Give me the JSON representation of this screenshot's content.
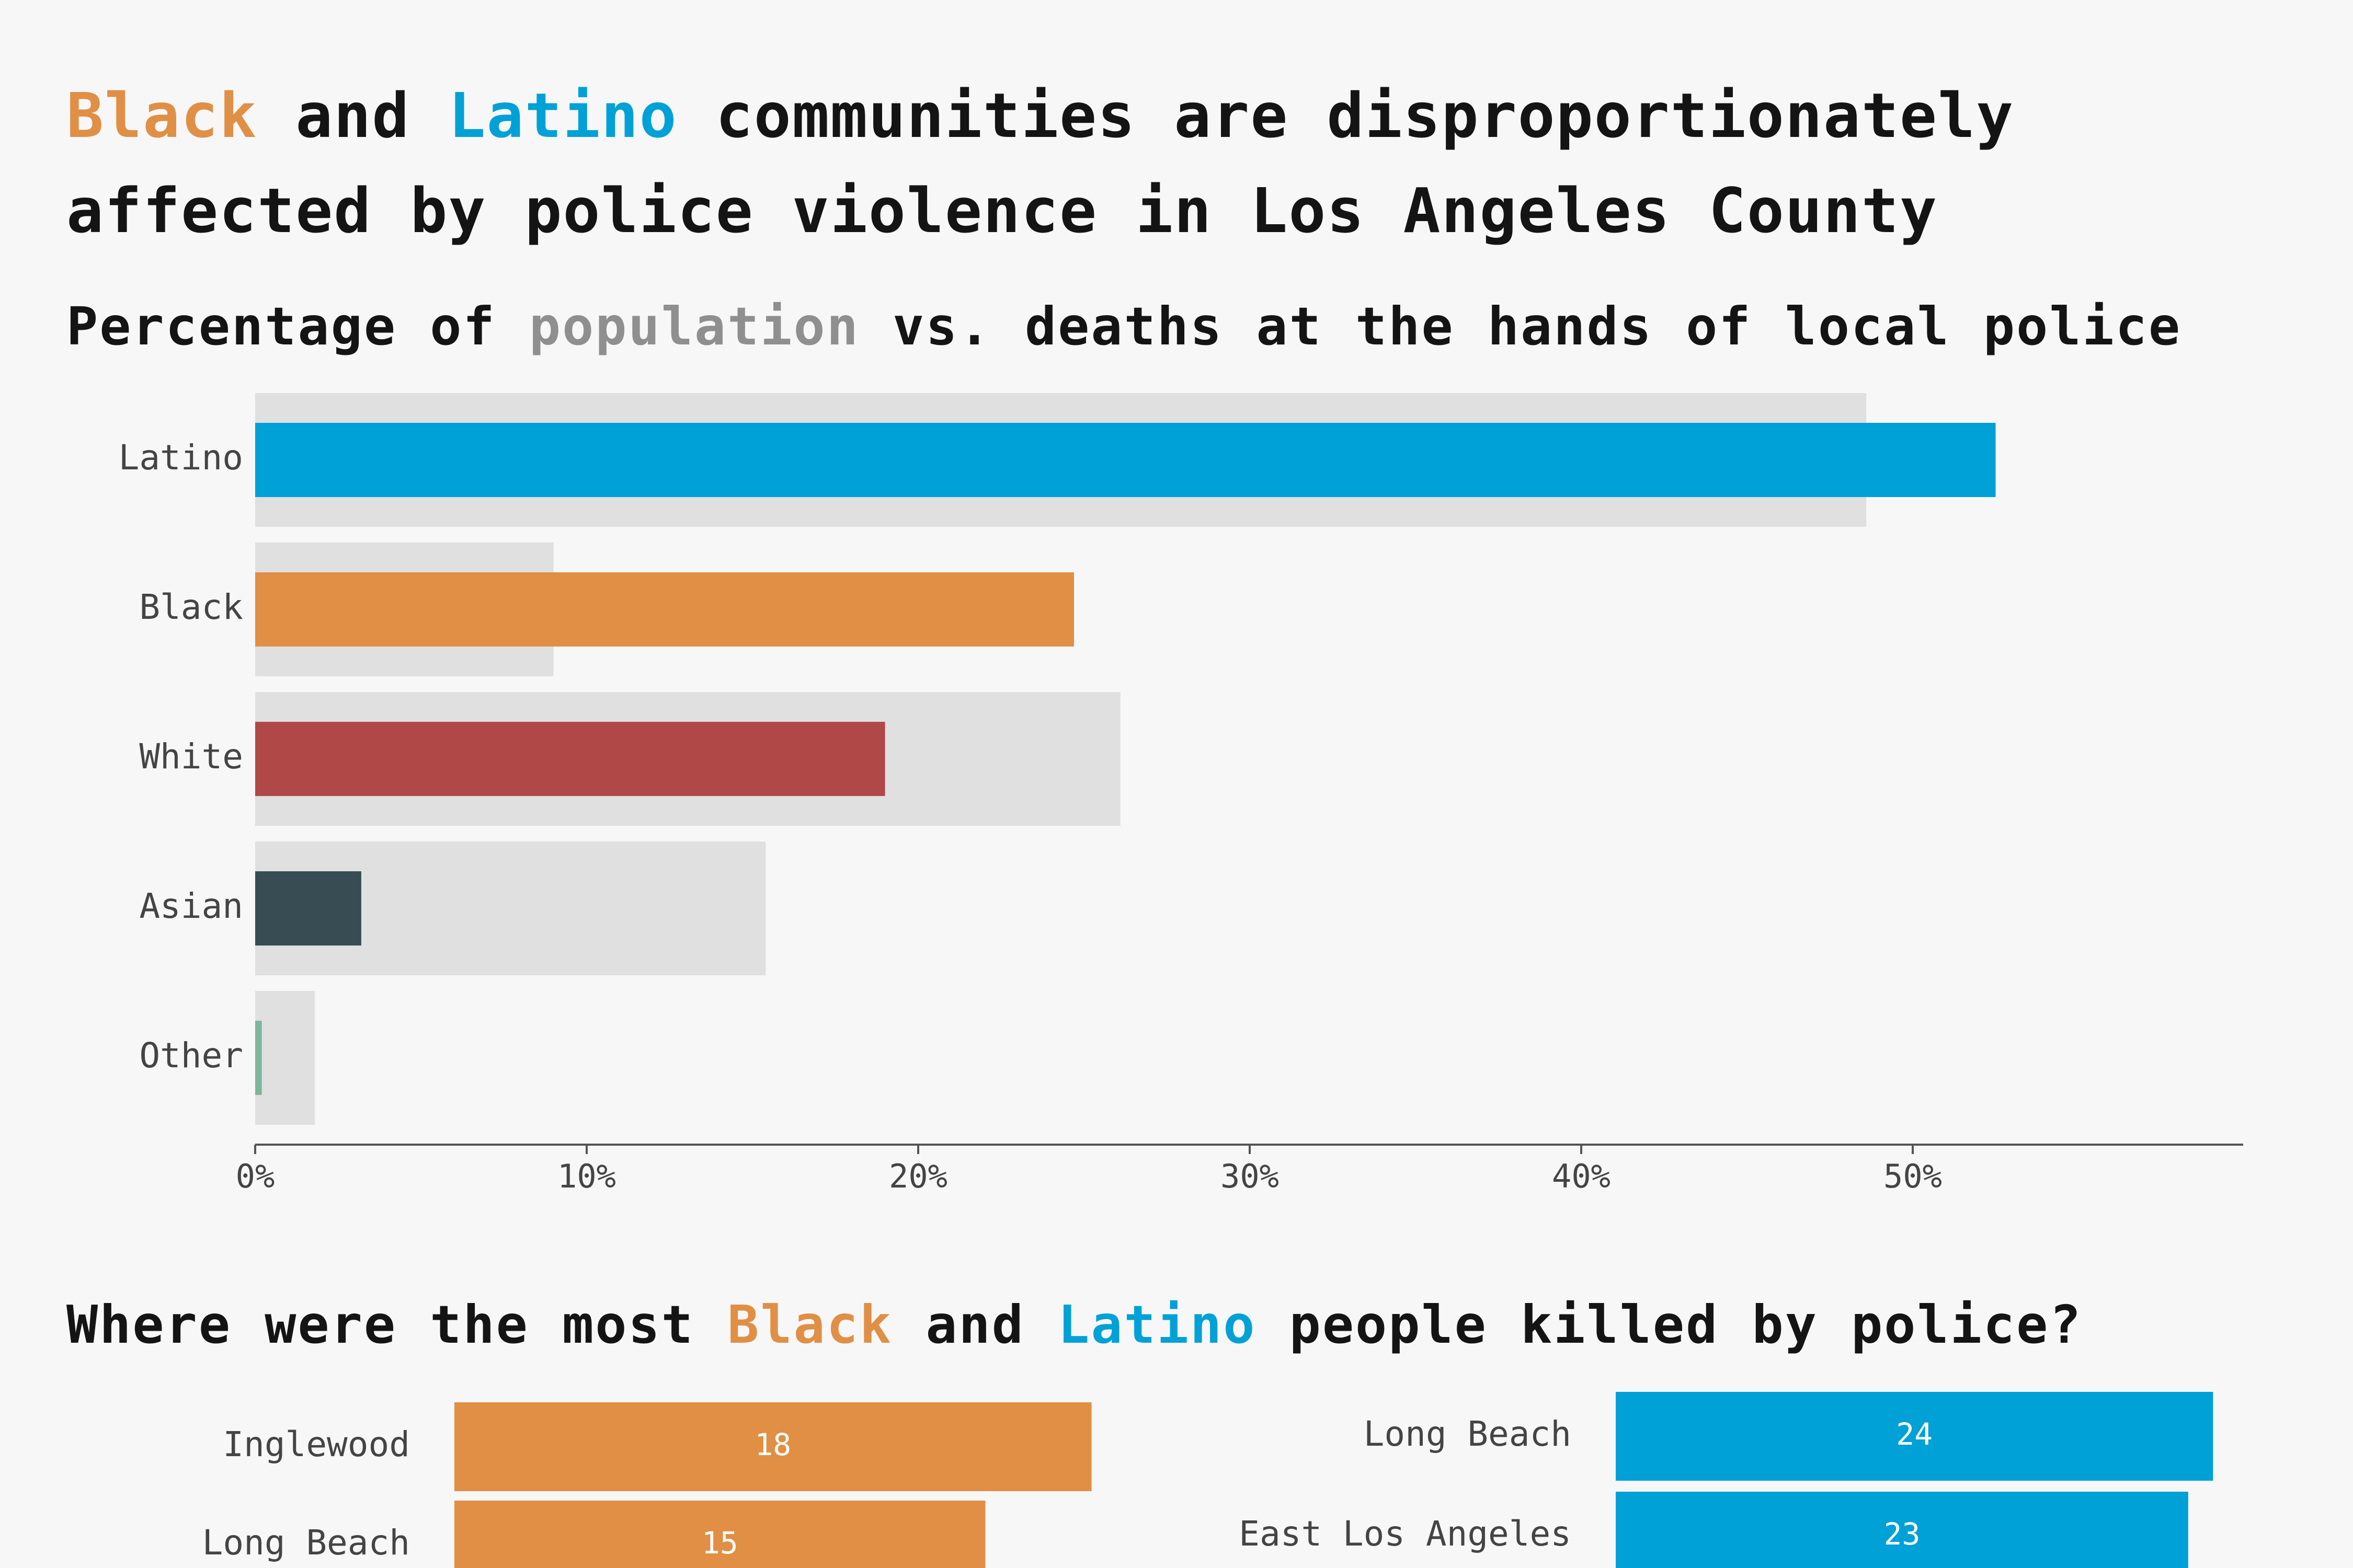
{
  "headline": {
    "black": "Black",
    "and1": " and ",
    "latino": "Latino",
    "rest": " communities are disproportionately affected by police violence in Los Angeles County"
  },
  "subtitle": {
    "prefix": "Percentage of ",
    "population": "population",
    "suffix": " vs. deaths at the hands of local police"
  },
  "subtitle2": {
    "prefix": "Where were the most ",
    "black": "Black",
    "and": " and ",
    "latino": "Latino",
    "suffix": " people killed by police?"
  },
  "colors": {
    "background": "#f7f7f7",
    "population_bar": "#e0e0e0",
    "latino": "#00a1d6",
    "black": "#e08f45",
    "white": "#b04848",
    "asian": "#384c53",
    "other": "#7db79a",
    "axis": "#555555",
    "label": "#444444"
  },
  "chart_data": [
    {
      "type": "bar",
      "orientation": "horizontal",
      "categories": [
        "Latino",
        "Black",
        "White",
        "Asian",
        "Other"
      ],
      "series": [
        {
          "key": "population",
          "values": [
            48.6,
            9.0,
            26.1,
            15.4,
            1.8
          ]
        },
        {
          "key": "deaths",
          "values": [
            52.5,
            24.7,
            19.0,
            3.2,
            0.2
          ]
        }
      ],
      "xlim": [
        0,
        60
      ],
      "x_ticks": [
        0,
        10,
        20,
        30,
        40,
        50
      ],
      "x_tick_labels": [
        "0%",
        "10%",
        "20%",
        "30%",
        "40%",
        "50%"
      ]
    },
    {
      "type": "bar",
      "orientation": "horizontal",
      "group": "black",
      "categories": [
        "Inglewood",
        "Long Beach"
      ],
      "values": [
        18,
        15
      ]
    },
    {
      "type": "bar",
      "orientation": "horizontal",
      "group": "latino",
      "categories": [
        "Long Beach",
        "East Los Angeles"
      ],
      "values": [
        24,
        23
      ]
    }
  ]
}
